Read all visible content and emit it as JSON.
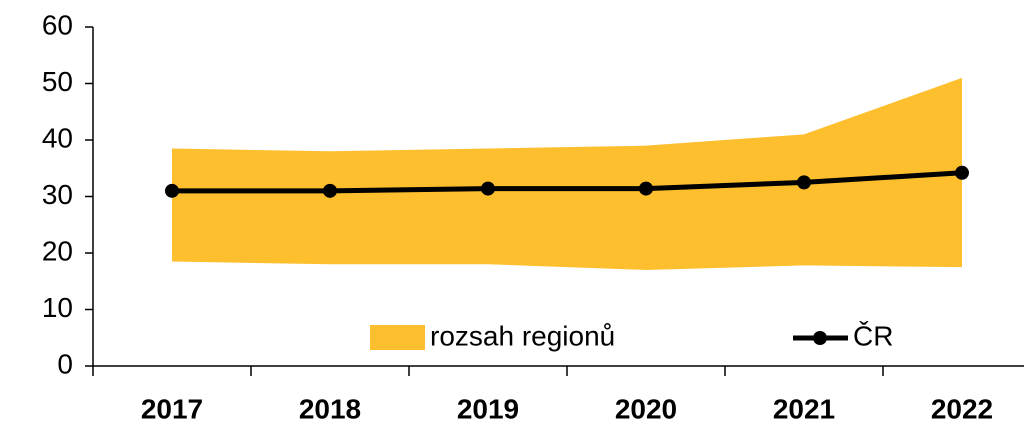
{
  "chart_data": {
    "type": "range-line",
    "categories": [
      "2017",
      "2018",
      "2019",
      "2020",
      "2021",
      "2022"
    ],
    "series": [
      {
        "name": "rozsah regionů",
        "color": "#fdbf2d",
        "low": [
          18.5,
          18,
          18,
          17,
          17.8,
          17.5
        ],
        "high": [
          38.5,
          38,
          38.5,
          39,
          41,
          51
        ]
      },
      {
        "name": "ČR",
        "color": "#000000",
        "values": [
          31,
          31,
          31.4,
          31.4,
          32.5,
          34.2
        ]
      }
    ],
    "ylim": [
      0,
      60
    ],
    "yticks": [
      0,
      10,
      20,
      30,
      40,
      50,
      60
    ],
    "grid": false
  }
}
